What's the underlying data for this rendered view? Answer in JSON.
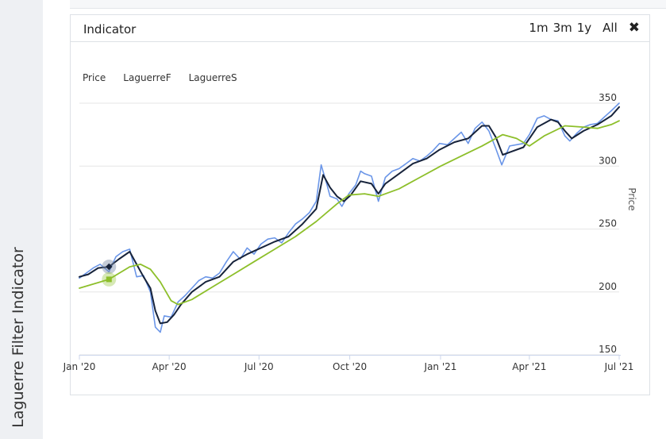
{
  "sidebar": {
    "title": "Laguerre Filter Indicator"
  },
  "panel": {
    "title": "Indicator",
    "ranges": [
      "1m",
      "3m",
      "1y"
    ],
    "all_label": "All"
  },
  "colors": {
    "price": "#6b96e8",
    "laguerre_f": "#17233b",
    "laguerre_s": "#8dbf2a",
    "grid": "#e6e6e6"
  },
  "chart_data": {
    "type": "line",
    "xlabel": "",
    "ylabel": "Price",
    "ylim": [
      150,
      350
    ],
    "y_ticks": [
      150,
      200,
      250,
      300,
      350
    ],
    "x_range": [
      "2020-01-01",
      "2021-07-01"
    ],
    "x_ticks": [
      {
        "date": "2020-01-01",
        "label": "Jan '20"
      },
      {
        "date": "2020-04-01",
        "label": "Apr '20"
      },
      {
        "date": "2020-07-01",
        "label": "Jul '20"
      },
      {
        "date": "2020-10-01",
        "label": "Oct '20"
      },
      {
        "date": "2021-01-01",
        "label": "Jan '21"
      },
      {
        "date": "2021-04-01",
        "label": "Apr '21"
      },
      {
        "date": "2021-07-01",
        "label": "Jul '21"
      }
    ],
    "legend_position": "top-left",
    "grid": true,
    "series": [
      {
        "name": "Price",
        "points": [
          [
            "2020-01-01",
            211
          ],
          [
            "2020-01-08",
            215
          ],
          [
            "2020-01-15",
            219
          ],
          [
            "2020-01-22",
            222
          ],
          [
            "2020-01-31",
            216
          ],
          [
            "2020-02-07",
            228
          ],
          [
            "2020-02-14",
            232
          ],
          [
            "2020-02-21",
            234
          ],
          [
            "2020-02-28",
            212
          ],
          [
            "2020-03-06",
            213
          ],
          [
            "2020-03-13",
            200
          ],
          [
            "2020-03-18",
            172
          ],
          [
            "2020-03-23",
            168
          ],
          [
            "2020-03-27",
            181
          ],
          [
            "2020-04-03",
            180
          ],
          [
            "2020-04-10",
            192
          ],
          [
            "2020-04-17",
            197
          ],
          [
            "2020-04-24",
            203
          ],
          [
            "2020-05-01",
            209
          ],
          [
            "2020-05-08",
            212
          ],
          [
            "2020-05-15",
            211
          ],
          [
            "2020-05-22",
            215
          ],
          [
            "2020-05-29",
            224
          ],
          [
            "2020-06-05",
            232
          ],
          [
            "2020-06-12",
            226
          ],
          [
            "2020-06-19",
            235
          ],
          [
            "2020-06-26",
            230
          ],
          [
            "2020-07-03",
            238
          ],
          [
            "2020-07-10",
            242
          ],
          [
            "2020-07-17",
            243
          ],
          [
            "2020-07-24",
            239
          ],
          [
            "2020-07-31",
            247
          ],
          [
            "2020-08-07",
            254
          ],
          [
            "2020-08-14",
            258
          ],
          [
            "2020-08-21",
            263
          ],
          [
            "2020-08-28",
            272
          ],
          [
            "2020-09-02",
            301
          ],
          [
            "2020-09-08",
            285
          ],
          [
            "2020-09-11",
            276
          ],
          [
            "2020-09-18",
            274
          ],
          [
            "2020-09-23",
            268
          ],
          [
            "2020-09-30",
            278
          ],
          [
            "2020-10-07",
            285
          ],
          [
            "2020-10-12",
            296
          ],
          [
            "2020-10-16",
            294
          ],
          [
            "2020-10-23",
            292
          ],
          [
            "2020-10-30",
            272
          ],
          [
            "2020-11-06",
            291
          ],
          [
            "2020-11-13",
            296
          ],
          [
            "2020-11-20",
            298
          ],
          [
            "2020-11-27",
            302
          ],
          [
            "2020-12-04",
            306
          ],
          [
            "2020-12-11",
            304
          ],
          [
            "2020-12-18",
            308
          ],
          [
            "2020-12-24",
            312
          ],
          [
            "2020-12-31",
            318
          ],
          [
            "2021-01-08",
            317
          ],
          [
            "2021-01-15",
            322
          ],
          [
            "2021-01-22",
            327
          ],
          [
            "2021-01-29",
            318
          ],
          [
            "2021-02-05",
            330
          ],
          [
            "2021-02-12",
            335
          ],
          [
            "2021-02-19",
            328
          ],
          [
            "2021-02-26",
            314
          ],
          [
            "2021-03-04",
            301
          ],
          [
            "2021-03-12",
            316
          ],
          [
            "2021-03-19",
            317
          ],
          [
            "2021-03-26",
            318
          ],
          [
            "2021-04-01",
            325
          ],
          [
            "2021-04-09",
            338
          ],
          [
            "2021-04-16",
            340
          ],
          [
            "2021-04-23",
            337
          ],
          [
            "2021-04-30",
            336
          ],
          [
            "2021-05-07",
            324
          ],
          [
            "2021-05-12",
            320
          ],
          [
            "2021-05-19",
            326
          ],
          [
            "2021-05-26",
            331
          ],
          [
            "2021-06-02",
            333
          ],
          [
            "2021-06-09",
            334
          ],
          [
            "2021-06-16",
            339
          ],
          [
            "2021-06-23",
            344
          ],
          [
            "2021-07-01",
            350
          ]
        ]
      },
      {
        "name": "LaguerreF",
        "points": [
          [
            "2020-01-01",
            212
          ],
          [
            "2020-01-10",
            214
          ],
          [
            "2020-01-20",
            219
          ],
          [
            "2020-01-31",
            220
          ],
          [
            "2020-02-10",
            226
          ],
          [
            "2020-02-21",
            232
          ],
          [
            "2020-02-28",
            222
          ],
          [
            "2020-03-06",
            212
          ],
          [
            "2020-03-13",
            203
          ],
          [
            "2020-03-18",
            185
          ],
          [
            "2020-03-23",
            175
          ],
          [
            "2020-03-30",
            176
          ],
          [
            "2020-04-06",
            182
          ],
          [
            "2020-04-13",
            190
          ],
          [
            "2020-04-24",
            200
          ],
          [
            "2020-05-08",
            208
          ],
          [
            "2020-05-22",
            212
          ],
          [
            "2020-06-05",
            224
          ],
          [
            "2020-06-19",
            230
          ],
          [
            "2020-07-03",
            235
          ],
          [
            "2020-07-17",
            240
          ],
          [
            "2020-07-31",
            244
          ],
          [
            "2020-08-14",
            254
          ],
          [
            "2020-08-28",
            266
          ],
          [
            "2020-09-04",
            293
          ],
          [
            "2020-09-11",
            283
          ],
          [
            "2020-09-18",
            276
          ],
          [
            "2020-09-25",
            272
          ],
          [
            "2020-10-02",
            277
          ],
          [
            "2020-10-12",
            288
          ],
          [
            "2020-10-23",
            286
          ],
          [
            "2020-10-30",
            278
          ],
          [
            "2020-11-06",
            286
          ],
          [
            "2020-11-20",
            294
          ],
          [
            "2020-12-04",
            302
          ],
          [
            "2020-12-18",
            306
          ],
          [
            "2020-12-31",
            313
          ],
          [
            "2021-01-15",
            319
          ],
          [
            "2021-01-29",
            322
          ],
          [
            "2021-02-12",
            332
          ],
          [
            "2021-02-19",
            332
          ],
          [
            "2021-02-26",
            323
          ],
          [
            "2021-03-05",
            309
          ],
          [
            "2021-03-12",
            311
          ],
          [
            "2021-03-26",
            315
          ],
          [
            "2021-04-09",
            331
          ],
          [
            "2021-04-23",
            337
          ],
          [
            "2021-04-30",
            335
          ],
          [
            "2021-05-07",
            328
          ],
          [
            "2021-05-14",
            322
          ],
          [
            "2021-05-26",
            328
          ],
          [
            "2021-06-09",
            333
          ],
          [
            "2021-06-23",
            340
          ],
          [
            "2021-07-01",
            347
          ]
        ]
      },
      {
        "name": "LaguerreS",
        "points": [
          [
            "2020-01-01",
            203
          ],
          [
            "2020-01-31",
            210
          ],
          [
            "2020-02-21",
            220
          ],
          [
            "2020-03-03",
            222
          ],
          [
            "2020-03-13",
            218
          ],
          [
            "2020-03-23",
            208
          ],
          [
            "2020-04-03",
            193
          ],
          [
            "2020-04-10",
            190
          ],
          [
            "2020-04-24",
            194
          ],
          [
            "2020-05-15",
            204
          ],
          [
            "2020-06-05",
            214
          ],
          [
            "2020-06-26",
            224
          ],
          [
            "2020-07-17",
            234
          ],
          [
            "2020-08-07",
            244
          ],
          [
            "2020-08-28",
            256
          ],
          [
            "2020-09-18",
            270
          ],
          [
            "2020-09-30",
            277
          ],
          [
            "2020-10-16",
            278
          ],
          [
            "2020-10-30",
            276
          ],
          [
            "2020-11-20",
            282
          ],
          [
            "2020-12-11",
            291
          ],
          [
            "2021-01-01",
            300
          ],
          [
            "2021-01-22",
            308
          ],
          [
            "2021-02-12",
            316
          ],
          [
            "2021-03-05",
            325
          ],
          [
            "2021-03-19",
            322
          ],
          [
            "2021-04-01",
            316
          ],
          [
            "2021-04-16",
            324
          ],
          [
            "2021-05-07",
            332
          ],
          [
            "2021-05-26",
            331
          ],
          [
            "2021-06-09",
            330
          ],
          [
            "2021-06-23",
            333
          ],
          [
            "2021-07-01",
            336
          ]
        ]
      }
    ]
  }
}
